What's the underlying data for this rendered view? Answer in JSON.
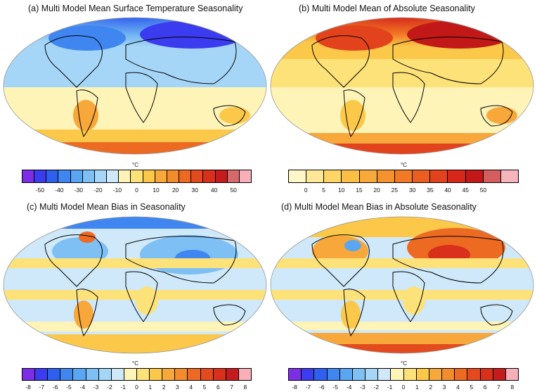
{
  "panels": [
    {
      "id": "a",
      "title": "(a) Multi Model Mean Surface Temperature Seasonality",
      "colorbar": {
        "unit": "°C",
        "colors": [
          "#7b2ee6",
          "#3b3bf0",
          "#2f5fee",
          "#3f86f0",
          "#5aa6f2",
          "#7ebff4",
          "#a6d6f7",
          "#cfe9fa",
          "#fff4b8",
          "#fde27a",
          "#fbc84a",
          "#f8a73a",
          "#f28c2c",
          "#ec6a22",
          "#e34a1e",
          "#d8301b",
          "#c41c1c",
          "#d66a6a",
          "#f7b0b8"
        ],
        "ticks": [
          "-50",
          "-40",
          "-30",
          "-20",
          "-10",
          "0",
          "10",
          "20",
          "30",
          "40",
          "50"
        ]
      }
    },
    {
      "id": "b",
      "title": "(b) Multi Model Mean of Absolute Seasonality",
      "colorbar": {
        "unit": "°C",
        "colors": [
          "#fff7c8",
          "#fee898",
          "#fdd466",
          "#fbbf45",
          "#f9a93a",
          "#f6922e",
          "#f17a26",
          "#ea5f20",
          "#e2431c",
          "#d6271a",
          "#c21818",
          "#d45d5d",
          "#f6b5bc"
        ],
        "ticks": [
          "0",
          "5",
          "10",
          "15",
          "20",
          "25",
          "30",
          "35",
          "40",
          "45",
          "50"
        ]
      }
    },
    {
      "id": "c",
      "title": "(c) Multi Model Mean Bias in Seasonality",
      "colorbar": {
        "unit": "°C",
        "colors": [
          "#7b2ee6",
          "#3b3bf0",
          "#2f5fee",
          "#3f86f0",
          "#5aa6f2",
          "#7ebff4",
          "#a6d6f7",
          "#cfe9fa",
          "#fff4b8",
          "#fde27a",
          "#fbc84a",
          "#f8a73a",
          "#f28c2c",
          "#ec6a22",
          "#e34a1e",
          "#d8301b",
          "#c41c1c",
          "#f7b0b8"
        ],
        "ticks": [
          "-8",
          "-7",
          "-6",
          "-5",
          "-4",
          "-3",
          "-2",
          "-1",
          "0",
          "1",
          "2",
          "3",
          "4",
          "5",
          "6",
          "7",
          "8"
        ]
      }
    },
    {
      "id": "d",
      "title": "(d) Multi Model Mean Bias in Absolute Seasonality",
      "colorbar": {
        "unit": "°C",
        "colors": [
          "#7b2ee6",
          "#3b3bf0",
          "#2f5fee",
          "#3f86f0",
          "#5aa6f2",
          "#7ebff4",
          "#a6d6f7",
          "#cfe9fa",
          "#fff4b8",
          "#fde27a",
          "#fbc84a",
          "#f8a73a",
          "#f28c2c",
          "#ec6a22",
          "#e34a1e",
          "#d8301b",
          "#c41c1c",
          "#f7b0b8"
        ],
        "ticks": [
          "-8",
          "-7",
          "-6",
          "-5",
          "-4",
          "-3",
          "-2",
          "-1",
          "0",
          "1",
          "2",
          "3",
          "4",
          "5",
          "6",
          "7",
          "8"
        ]
      }
    }
  ]
}
